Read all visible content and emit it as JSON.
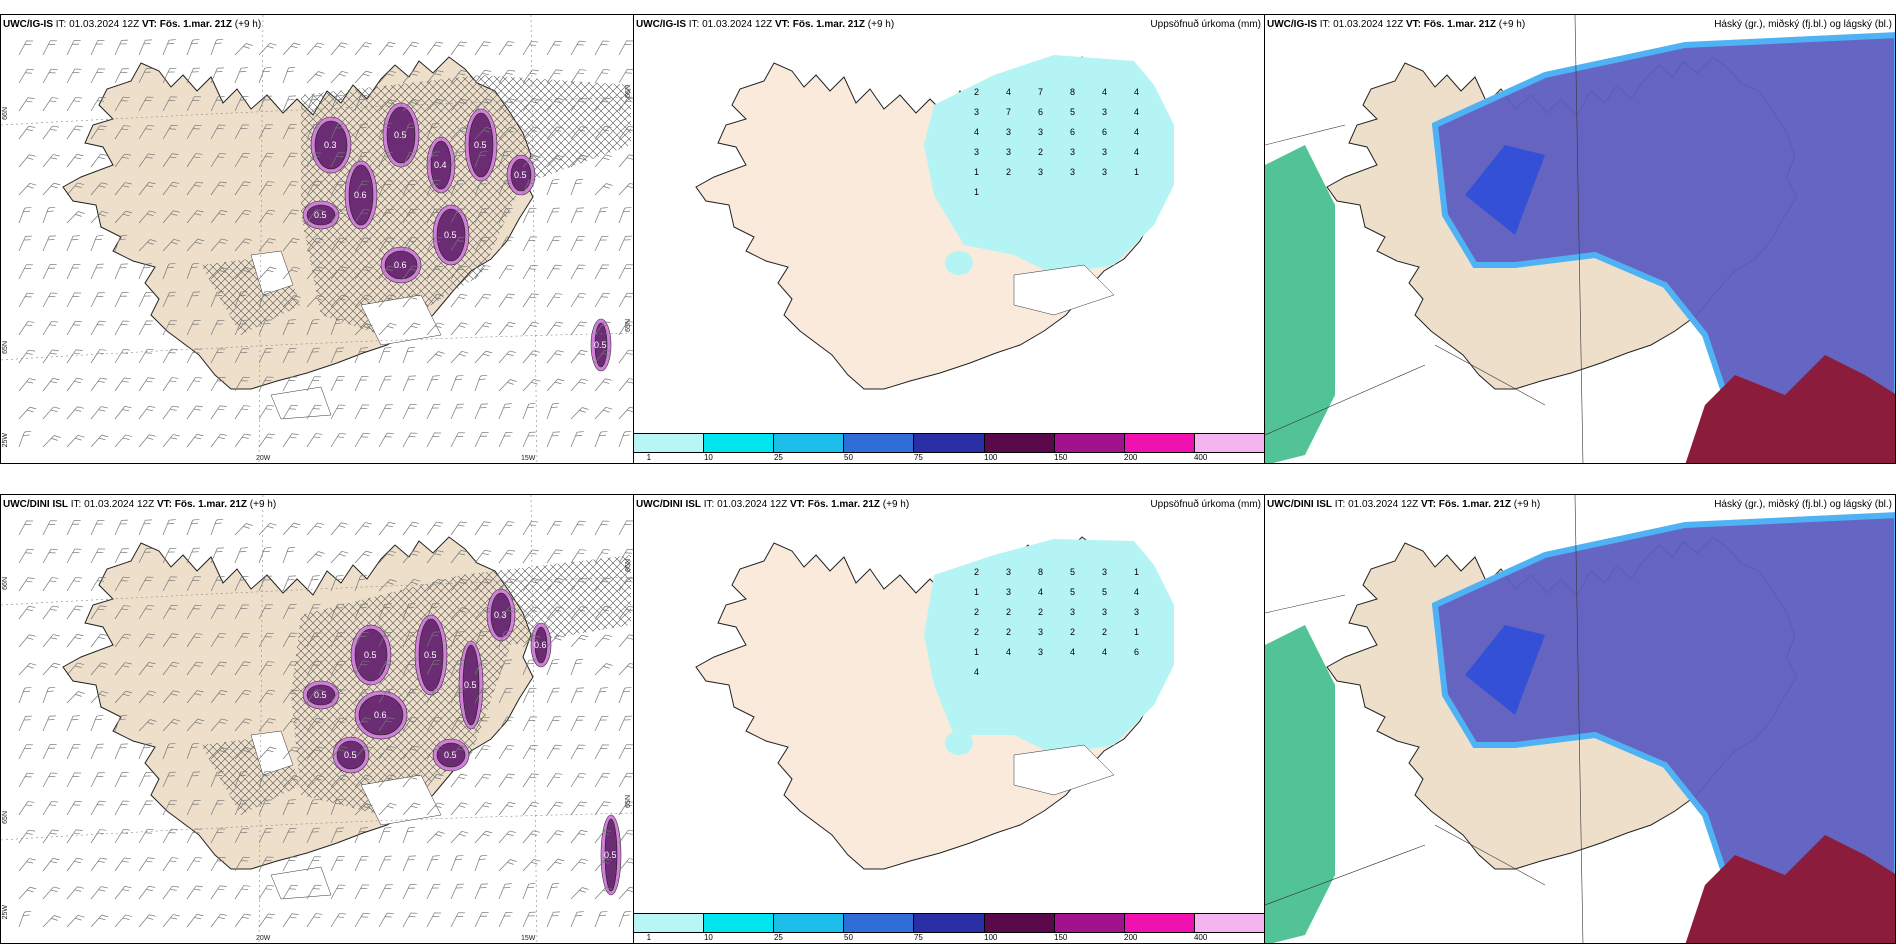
{
  "colors": {
    "land": "#eedfca",
    "land_light": "#faeadc",
    "precip": "#b4f4f5",
    "snow": "#ffffff",
    "pink": "#d17fd9",
    "purple": "#6b2c74",
    "cloud_high": "#5d5ec0",
    "cloud_mid": "#2e4ed8",
    "cloud_light": "#4fb2f4",
    "cloud_low_green": "#3fbd8c",
    "cloud_low_red": "#8b1c3c"
  },
  "rows": [
    {
      "model": "UWC/IG-IS",
      "left": {
        "prefix": "UWC/IG-IS",
        "rest": " IT: 01.03.2024 12Z ",
        "vt_label": "VT:",
        "vt_value": "Fös. 1.mar. 21Z",
        "lead": " (+9 h)",
        "lat_labels": [
          "66N",
          "65N",
          "25W"
        ],
        "lon_labels": [
          "20W",
          "15W"
        ],
        "right_edge_labels": [
          "65N",
          "66N"
        ],
        "contour_labels": [
          "0.3",
          "0.6",
          "0.5",
          "0.4",
          "0.5",
          "0.5",
          "0.5",
          "0.6",
          "0.5",
          "0.5"
        ]
      },
      "middle": {
        "prefix": "UWC/IG-IS",
        "rest": " IT: 01.03.2024 12Z ",
        "vt_label": "VT:",
        "vt_value": "Fös. 1.mar. 21Z",
        "lead": " (+9 h)",
        "right_title": "Uppsöfnuð úrkoma (mm)",
        "values": [
          "2",
          "4",
          "7",
          "8",
          "4",
          "4",
          "3",
          "7",
          "6",
          "5",
          "3",
          "4",
          "4",
          "3",
          "3",
          "6",
          "6",
          "4",
          "3",
          "3",
          "2",
          "3",
          "3",
          "4",
          "1",
          "2",
          "3",
          "3",
          "3",
          "1",
          "1"
        ]
      },
      "right": {
        "prefix": "UWC/IG-IS",
        "rest": " IT: 01.03.2024 12Z ",
        "vt_label": "VT:",
        "vt_value": "Fös. 1.mar. 21Z",
        "lead": " (+9 h)",
        "right_title": "Háský (gr.), miðský (fj.bl.) og lágský (bl.)"
      }
    },
    {
      "model": "UWC/DINI ISL",
      "left": {
        "prefix": "UWC/DINI ISL",
        "rest": " IT: 01.03.2024 12Z ",
        "vt_label": "VT:",
        "vt_value": "Fös. 1.mar. 21Z",
        "lead": " (+9 h)",
        "lat_labels": [
          "66N",
          "65N",
          "25W"
        ],
        "lon_labels": [
          "20W",
          "15W"
        ],
        "right_edge_labels": [
          "65N",
          "66N"
        ],
        "contour_labels": [
          "0.5",
          "0.6",
          "0.5",
          "0.5",
          "0.3",
          "0.5",
          "0.5",
          "0.6",
          "0.5",
          "0.5"
        ]
      },
      "middle": {
        "prefix": "UWC/DINI ISL",
        "rest": " IT: 01.03.2024 12Z ",
        "vt_label": "VT:",
        "vt_value": "Fös. 1.mar. 21Z",
        "lead": " (+9 h)",
        "right_title": "Uppsöfnuð úrkoma (mm)",
        "values": [
          "2",
          "3",
          "8",
          "5",
          "3",
          "1",
          "1",
          "3",
          "4",
          "5",
          "5",
          "4",
          "2",
          "2",
          "2",
          "3",
          "3",
          "3",
          "2",
          "2",
          "3",
          "2",
          "2",
          "1",
          "1",
          "4",
          "3",
          "4",
          "4",
          "6",
          "4"
        ]
      },
      "right": {
        "prefix": "UWC/DINI ISL",
        "rest": " IT: 01.03.2024 12Z ",
        "vt_label": "VT:",
        "vt_value": "Fös. 1.mar. 21Z",
        "lead": " (+9 h)",
        "right_title": "Háský (gr.), miðský (fj.bl.) og lágský (bl.)"
      }
    }
  ],
  "colorbar": {
    "ticks": [
      "1",
      "10",
      "25",
      "50",
      "75",
      "100",
      "150",
      "200",
      "400"
    ],
    "colors": [
      "#b8f5f7",
      "#00e5ee",
      "#1dbeea",
      "#2f6ed9",
      "#2a2fa5",
      "#5a0a4a",
      "#a0138c",
      "#f012b0",
      "#f4b4ef"
    ]
  }
}
